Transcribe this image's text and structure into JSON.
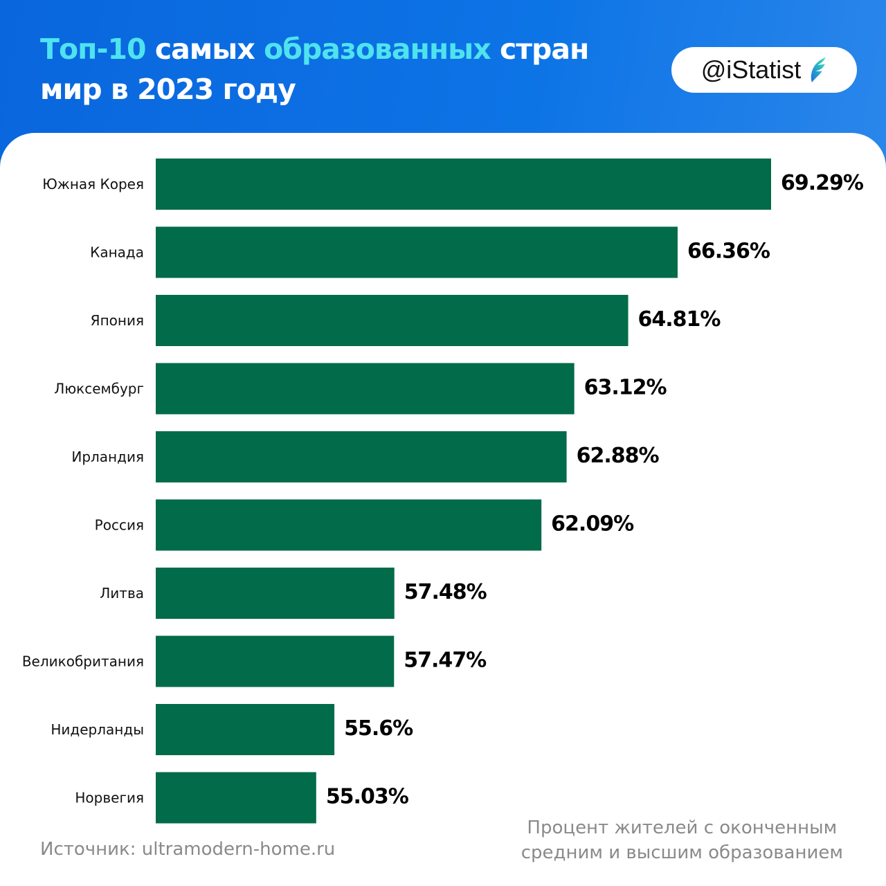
{
  "header": {
    "title_parts": [
      "Топ-10",
      " самых ",
      "образованных",
      " стран",
      "мир в 2023 году"
    ],
    "brand": "@iStatist",
    "accent_color": "#4fe3ef",
    "background_color": "#0b6fe3"
  },
  "chart_data": {
    "type": "bar",
    "orientation": "horizontal",
    "categories": [
      "Южная Корея",
      "Канада",
      "Япония",
      "Люксембург",
      "Ирландия",
      "Россия",
      "Литва",
      "Великобритания",
      "Нидерланды",
      "Норвегия"
    ],
    "values": [
      69.29,
      66.36,
      64.81,
      63.12,
      62.88,
      62.09,
      57.48,
      57.47,
      55.6,
      55.03
    ],
    "data_labels": [
      "69.29%",
      "66.36%",
      "64.81%",
      "63.12%",
      "62.88%",
      "62.09%",
      "57.48%",
      "57.47%",
      "55.6%",
      "55.03%"
    ],
    "unit": "%",
    "xlim": [
      50,
      70
    ],
    "grid": false,
    "bar_color": "#026b4a"
  },
  "footer": {
    "source": "Источник: ultramodern-home.ru",
    "note_line1": "Процент жителей с оконченным",
    "note_line2": "средним и высшим образованием"
  }
}
